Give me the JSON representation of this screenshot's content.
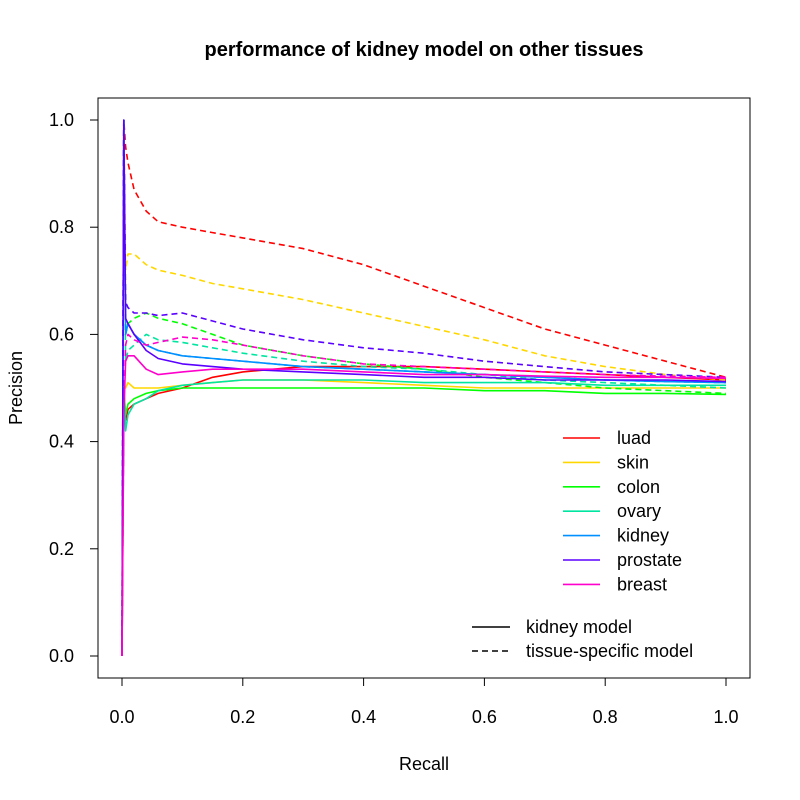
{
  "chart_data": {
    "type": "line",
    "title": "performance of kidney model on other tissues",
    "xlabel": "Recall",
    "ylabel": "Precision",
    "xlim": [
      0,
      1
    ],
    "ylim": [
      0,
      1
    ],
    "xticks": [
      "0.0",
      "0.2",
      "0.4",
      "0.6",
      "0.8",
      "1.0"
    ],
    "yticks": [
      "0.0",
      "0.2",
      "0.4",
      "0.6",
      "0.8",
      "1.0"
    ],
    "grid": false,
    "legend_position": "bottom-right",
    "line_styles": [
      {
        "name": "kidney model",
        "dash": "solid"
      },
      {
        "name": "tissue-specific model",
        "dash": "dashed"
      }
    ],
    "series": [
      {
        "name": "luad",
        "color": "#ff0000",
        "kidney_model": {
          "x": [
            0,
            0.003,
            0.006,
            0.01,
            0.02,
            0.04,
            0.06,
            0.1,
            0.15,
            0.2,
            0.3,
            0.4,
            0.5,
            0.6,
            0.7,
            0.8,
            0.9,
            1.0
          ],
          "y": [
            0,
            0.5,
            0.44,
            0.46,
            0.47,
            0.48,
            0.49,
            0.5,
            0.52,
            0.53,
            0.54,
            0.54,
            0.54,
            0.535,
            0.53,
            0.525,
            0.52,
            0.515
          ]
        },
        "tissue_specific": {
          "x": [
            0,
            0.003,
            0.006,
            0.01,
            0.02,
            0.04,
            0.06,
            0.1,
            0.15,
            0.2,
            0.3,
            0.4,
            0.5,
            0.6,
            0.7,
            0.8,
            0.9,
            1.0
          ],
          "y": [
            0,
            1.0,
            0.95,
            0.92,
            0.87,
            0.83,
            0.81,
            0.8,
            0.79,
            0.78,
            0.76,
            0.73,
            0.69,
            0.65,
            0.61,
            0.58,
            0.55,
            0.52
          ]
        }
      },
      {
        "name": "skin",
        "color": "#ffd700",
        "kidney_model": {
          "x": [
            0,
            0.003,
            0.006,
            0.01,
            0.02,
            0.04,
            0.06,
            0.1,
            0.15,
            0.2,
            0.3,
            0.4,
            0.5,
            0.6,
            0.7,
            0.8,
            0.9,
            1.0
          ],
          "y": [
            0,
            0.5,
            0.5,
            0.51,
            0.5,
            0.5,
            0.5,
            0.505,
            0.51,
            0.515,
            0.515,
            0.51,
            0.505,
            0.5,
            0.5,
            0.5,
            0.5,
            0.5
          ]
        },
        "tissue_specific": {
          "x": [
            0,
            0.003,
            0.006,
            0.01,
            0.02,
            0.04,
            0.06,
            0.1,
            0.15,
            0.2,
            0.3,
            0.4,
            0.5,
            0.6,
            0.7,
            0.8,
            0.9,
            1.0
          ],
          "y": [
            0,
            1.0,
            0.72,
            0.75,
            0.75,
            0.73,
            0.72,
            0.71,
            0.695,
            0.685,
            0.665,
            0.64,
            0.615,
            0.59,
            0.56,
            0.54,
            0.525,
            0.515
          ]
        }
      },
      {
        "name": "colon",
        "color": "#00ff00",
        "kidney_model": {
          "x": [
            0,
            0.003,
            0.006,
            0.01,
            0.02,
            0.04,
            0.06,
            0.1,
            0.15,
            0.2,
            0.3,
            0.4,
            0.5,
            0.6,
            0.7,
            0.8,
            0.9,
            1.0
          ],
          "y": [
            0,
            0.5,
            0.45,
            0.47,
            0.48,
            0.49,
            0.495,
            0.5,
            0.5,
            0.5,
            0.5,
            0.5,
            0.5,
            0.495,
            0.495,
            0.49,
            0.49,
            0.488
          ]
        },
        "tissue_specific": {
          "x": [
            0,
            0.003,
            0.006,
            0.01,
            0.02,
            0.04,
            0.06,
            0.1,
            0.15,
            0.2,
            0.3,
            0.4,
            0.5,
            0.6,
            0.7,
            0.8,
            0.9,
            1.0
          ],
          "y": [
            0,
            1.0,
            0.6,
            0.62,
            0.63,
            0.64,
            0.63,
            0.62,
            0.6,
            0.58,
            0.56,
            0.545,
            0.535,
            0.52,
            0.51,
            0.5,
            0.495,
            0.49
          ]
        }
      },
      {
        "name": "ovary",
        "color": "#00e5a0",
        "kidney_model": {
          "x": [
            0,
            0.003,
            0.006,
            0.01,
            0.02,
            0.04,
            0.06,
            0.1,
            0.15,
            0.2,
            0.3,
            0.4,
            0.5,
            0.6,
            0.7,
            0.8,
            0.9,
            1.0
          ],
          "y": [
            0,
            0.5,
            0.42,
            0.45,
            0.47,
            0.48,
            0.495,
            0.505,
            0.51,
            0.515,
            0.515,
            0.515,
            0.51,
            0.51,
            0.51,
            0.505,
            0.505,
            0.505
          ]
        },
        "tissue_specific": {
          "x": [
            0,
            0.003,
            0.006,
            0.01,
            0.02,
            0.04,
            0.06,
            0.1,
            0.15,
            0.2,
            0.3,
            0.4,
            0.5,
            0.6,
            0.7,
            0.8,
            0.9,
            1.0
          ],
          "y": [
            0,
            1.0,
            0.55,
            0.57,
            0.58,
            0.6,
            0.59,
            0.585,
            0.575,
            0.565,
            0.55,
            0.54,
            0.535,
            0.525,
            0.515,
            0.51,
            0.505,
            0.5
          ]
        }
      },
      {
        "name": "kidney",
        "color": "#0090ff",
        "kidney_model": {
          "x": [
            0,
            0.003,
            0.006,
            0.01,
            0.02,
            0.04,
            0.06,
            0.1,
            0.15,
            0.2,
            0.3,
            0.4,
            0.5,
            0.6,
            0.7,
            0.8,
            0.9,
            1.0
          ],
          "y": [
            0,
            1.0,
            0.6,
            0.62,
            0.6,
            0.58,
            0.57,
            0.56,
            0.555,
            0.55,
            0.54,
            0.535,
            0.53,
            0.525,
            0.52,
            0.515,
            0.512,
            0.51
          ]
        },
        "tissue_specific": {
          "x": [
            0,
            0.003,
            0.006,
            0.01,
            0.02,
            0.04,
            0.06,
            0.1,
            0.15,
            0.2,
            0.3,
            0.4,
            0.5,
            0.6,
            0.7,
            0.8,
            0.9,
            1.0
          ],
          "y": [
            0,
            1.0,
            0.6,
            0.62,
            0.6,
            0.58,
            0.57,
            0.56,
            0.555,
            0.55,
            0.54,
            0.535,
            0.53,
            0.525,
            0.52,
            0.515,
            0.512,
            0.51
          ]
        }
      },
      {
        "name": "prostate",
        "color": "#5a00ff",
        "kidney_model": {
          "x": [
            0,
            0.003,
            0.006,
            0.01,
            0.02,
            0.04,
            0.06,
            0.1,
            0.15,
            0.2,
            0.3,
            0.4,
            0.5,
            0.6,
            0.7,
            0.8,
            0.9,
            1.0
          ],
          "y": [
            0,
            1.0,
            0.63,
            0.62,
            0.6,
            0.57,
            0.555,
            0.545,
            0.54,
            0.535,
            0.53,
            0.525,
            0.52,
            0.52,
            0.515,
            0.515,
            0.515,
            0.512
          ]
        },
        "tissue_specific": {
          "x": [
            0,
            0.003,
            0.006,
            0.01,
            0.02,
            0.04,
            0.06,
            0.1,
            0.15,
            0.2,
            0.3,
            0.4,
            0.5,
            0.6,
            0.7,
            0.8,
            0.9,
            1.0
          ],
          "y": [
            0,
            1.0,
            0.66,
            0.65,
            0.64,
            0.64,
            0.635,
            0.64,
            0.625,
            0.61,
            0.59,
            0.575,
            0.565,
            0.55,
            0.54,
            0.53,
            0.525,
            0.52
          ]
        }
      },
      {
        "name": "breast",
        "color": "#ff00cc",
        "kidney_model": {
          "x": [
            0,
            0.003,
            0.006,
            0.01,
            0.02,
            0.04,
            0.06,
            0.1,
            0.15,
            0.2,
            0.3,
            0.4,
            0.5,
            0.6,
            0.7,
            0.8,
            0.9,
            1.0
          ],
          "y": [
            0,
            0.45,
            0.55,
            0.56,
            0.56,
            0.535,
            0.525,
            0.53,
            0.535,
            0.535,
            0.535,
            0.53,
            0.525,
            0.525,
            0.522,
            0.52,
            0.52,
            0.518
          ]
        },
        "tissue_specific": {
          "x": [
            0,
            0.003,
            0.006,
            0.01,
            0.02,
            0.04,
            0.06,
            0.1,
            0.15,
            0.2,
            0.3,
            0.4,
            0.5,
            0.6,
            0.7,
            0.8,
            0.9,
            1.0
          ],
          "y": [
            0,
            0.45,
            0.58,
            0.6,
            0.59,
            0.58,
            0.585,
            0.595,
            0.59,
            0.58,
            0.56,
            0.545,
            0.54,
            0.535,
            0.53,
            0.525,
            0.522,
            0.52
          ]
        }
      }
    ]
  }
}
